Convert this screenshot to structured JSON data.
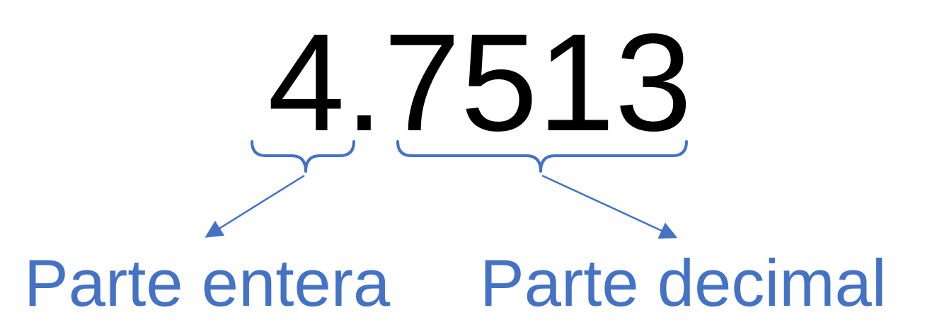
{
  "number": {
    "integer_part": "4",
    "decimal_separator": ".",
    "decimal_part": "7513"
  },
  "labels": {
    "integer": "Parte entera",
    "decimal": "Parte decimal"
  },
  "colors": {
    "number": "#000000",
    "accent": "#4472C4",
    "background": "#ffffff"
  }
}
